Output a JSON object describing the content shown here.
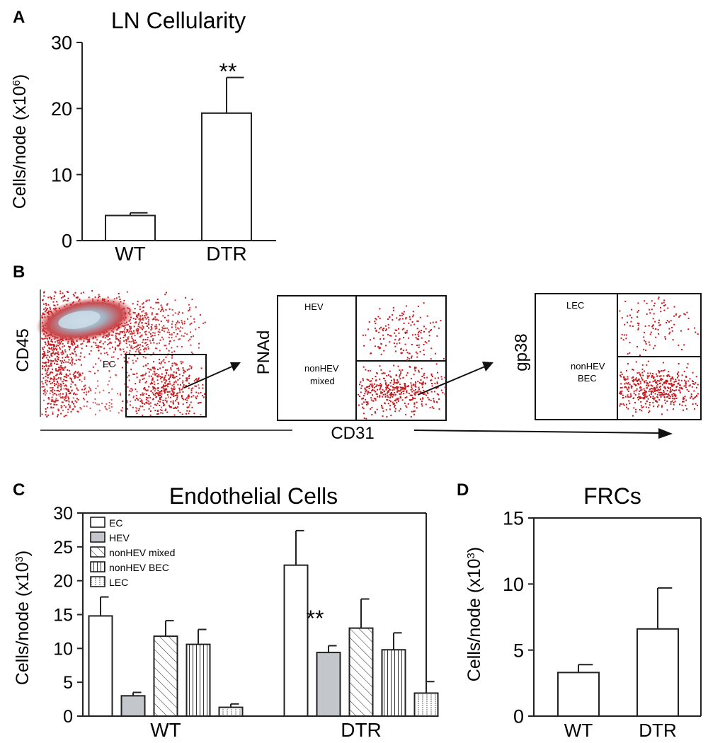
{
  "panels": {
    "A": "A",
    "B": "B",
    "C": "C",
    "D": "D"
  },
  "colors": {
    "axis": "#222222",
    "bar_white": "#ffffff",
    "bar_gray": "#c3c7cb",
    "flow_red": "#c8191e",
    "flow_pale": "#a9b9c8"
  },
  "chart_data": [
    {
      "id": "A",
      "type": "bar",
      "title": "LN Cellularity",
      "ylabel": "Cells/node (x10",
      "ylabel_exp": "6",
      "ylabel_end": ")",
      "categories": [
        "WT",
        "DTR"
      ],
      "values": [
        3.8,
        19.3
      ],
      "errors": [
        0.4,
        5.4
      ],
      "ylim": [
        0,
        30
      ],
      "yticks": [
        "0",
        "10",
        "20",
        "30"
      ],
      "annotations": [
        "",
        "**"
      ]
    },
    {
      "id": "B",
      "type": "scatter",
      "description_axes": {
        "x_common": "CD31",
        "plot1_y": "CD45",
        "plot2_y": "PNAd",
        "plot3_y": "gp38"
      },
      "gates": {
        "plot1": [
          "EC"
        ],
        "plot2": [
          "HEV",
          "nonHEV",
          "mixed"
        ],
        "plot3": [
          "LEC",
          "nonHEV",
          "BEC"
        ]
      }
    },
    {
      "id": "C",
      "type": "bar",
      "title": "Endothelial Cells",
      "ylabel": "Cells/node (x10",
      "ylabel_exp": "3",
      "ylabel_end": ")",
      "categories": [
        "WT",
        "DTR"
      ],
      "series": [
        {
          "name": "EC",
          "values": [
            14.8,
            22.3
          ],
          "errors": [
            2.8,
            5.1
          ]
        },
        {
          "name": "HEV",
          "values": [
            3.0,
            9.4
          ],
          "errors": [
            0.5,
            1.0
          ]
        },
        {
          "name": "nonHEV mixed",
          "values": [
            11.8,
            13.0
          ],
          "errors": [
            2.3,
            4.3
          ]
        },
        {
          "name": "nonHEV BEC",
          "values": [
            10.6,
            9.8
          ],
          "errors": [
            2.2,
            2.5
          ]
        },
        {
          "name": "LEC",
          "values": [
            1.3,
            3.4
          ],
          "errors": [
            0.5,
            1.7
          ]
        }
      ],
      "ylim": [
        0,
        30
      ],
      "yticks": [
        "0",
        "5",
        "10",
        "15",
        "20",
        "25",
        "30"
      ],
      "annotation": "**"
    },
    {
      "id": "D",
      "type": "bar",
      "title": "FRCs",
      "ylabel": "Cells/node (x10",
      "ylabel_exp": "3",
      "ylabel_end": ")",
      "categories": [
        "WT",
        "DTR"
      ],
      "values": [
        3.3,
        6.6
      ],
      "errors": [
        0.6,
        3.1
      ],
      "ylim": [
        0,
        15
      ],
      "yticks": [
        "0",
        "5",
        "10",
        "15"
      ]
    }
  ]
}
